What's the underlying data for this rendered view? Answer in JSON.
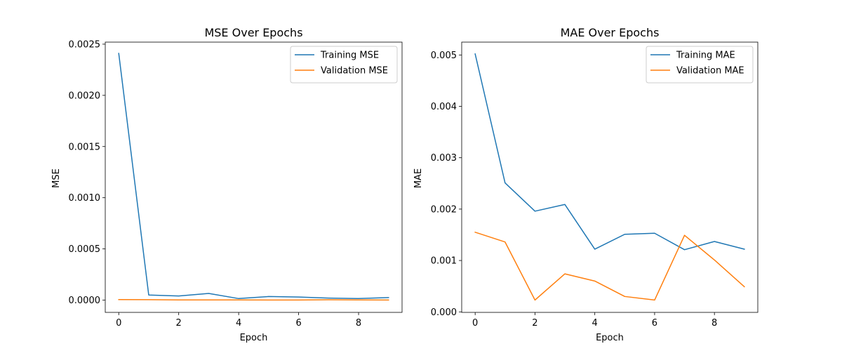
{
  "chart_data": [
    {
      "type": "line",
      "title": "MSE Over Epochs",
      "xlabel": "Epoch",
      "ylabel": "MSE",
      "x": [
        0,
        1,
        2,
        3,
        4,
        5,
        6,
        7,
        8,
        9
      ],
      "xlim": [
        -0.45,
        9.45
      ],
      "ylim": [
        -0.00012,
        0.00252
      ],
      "xticks": [
        0,
        2,
        4,
        6,
        8
      ],
      "xtick_labels": [
        "0",
        "2",
        "4",
        "6",
        "8"
      ],
      "yticks": [
        0,
        0.0005,
        0.001,
        0.0015,
        0.002,
        0.0025
      ],
      "ytick_labels": [
        "0.0000",
        "0.0005",
        "0.0010",
        "0.0015",
        "0.0020",
        "0.0025"
      ],
      "grid": false,
      "legend": "top-right",
      "series": [
        {
          "name": "Training MSE",
          "color": "#1f77b4",
          "values": [
            0.00241,
            5e-05,
            4e-05,
            6.5e-05,
            1.5e-05,
            3.5e-05,
            3e-05,
            2e-05,
            1.5e-05,
            2.5e-05
          ]
        },
        {
          "name": "Validation MSE",
          "color": "#ff7f0e",
          "values": [
            5e-06,
            4e-06,
            2e-06,
            2e-06,
            2e-06,
            1e-06,
            1e-06,
            3e-06,
            2e-06,
            1e-06
          ]
        }
      ]
    },
    {
      "type": "line",
      "title": "MAE Over Epochs",
      "xlabel": "Epoch",
      "ylabel": "MAE",
      "x": [
        0,
        1,
        2,
        3,
        4,
        5,
        6,
        7,
        8,
        9
      ],
      "xlim": [
        -0.45,
        9.45
      ],
      "ylim": [
        -1e-05,
        0.00525
      ],
      "xticks": [
        0,
        2,
        4,
        6,
        8
      ],
      "xtick_labels": [
        "0",
        "2",
        "4",
        "6",
        "8"
      ],
      "yticks": [
        0,
        0.001,
        0.002,
        0.003,
        0.004,
        0.005
      ],
      "ytick_labels": [
        "0.000",
        "0.001",
        "0.002",
        "0.003",
        "0.004",
        "0.005"
      ],
      "grid": false,
      "legend": "top-right",
      "series": [
        {
          "name": "Training MAE",
          "color": "#1f77b4",
          "values": [
            0.00502,
            0.00251,
            0.00196,
            0.00209,
            0.00122,
            0.00151,
            0.00153,
            0.00121,
            0.00137,
            0.00122
          ]
        },
        {
          "name": "Validation MAE",
          "color": "#ff7f0e",
          "values": [
            0.00155,
            0.00136,
            0.00023,
            0.00074,
            0.0006,
            0.0003,
            0.00023,
            0.00149,
            0.00101,
            0.00049
          ]
        }
      ]
    }
  ]
}
